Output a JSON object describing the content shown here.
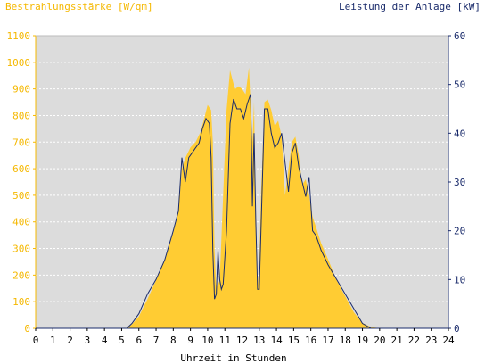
{
  "chart_data": {
    "type": "area",
    "title_left": "Bestrahlungsstärke [W/qm]",
    "title_right": "Leistung der Anlage [kW]",
    "xlabel": "Uhrzeit in Stunden",
    "xlim": [
      0,
      24
    ],
    "x_ticks": [
      "0",
      "1",
      "2",
      "3",
      "4",
      "5",
      "6",
      "7",
      "8",
      "9",
      "10",
      "11",
      "12",
      "13",
      "14",
      "15",
      "16",
      "17",
      "18",
      "19",
      "20",
      "21",
      "22",
      "23",
      "24"
    ],
    "y_left_lim": [
      0,
      1100
    ],
    "y_left_ticks": [
      "0",
      "100",
      "200",
      "300",
      "400",
      "500",
      "600",
      "700",
      "800",
      "900",
      "1000",
      "1100"
    ],
    "y_right_lim": [
      0,
      60
    ],
    "y_right_ticks": [
      "0",
      "10",
      "20",
      "30",
      "40",
      "50",
      "60"
    ],
    "grid": true,
    "colors": {
      "plot_bg": "#dcdcdc",
      "irradiance": "#ffcc33",
      "power": "#1a2b6b",
      "left_axis": "#f5b800",
      "right_axis": "#1a2b6b"
    },
    "series": [
      {
        "axis": "left",
        "x": [
          5.3,
          5.6,
          6.0,
          6.5,
          7.0,
          7.5,
          8.0,
          8.3,
          8.5,
          8.7,
          9.0,
          9.3,
          9.6,
          9.8,
          10.0,
          10.2,
          10.3,
          10.4,
          10.5,
          10.7,
          10.9,
          11.1,
          11.3,
          11.5,
          11.6,
          11.8,
          12.0,
          12.2,
          12.4,
          12.6,
          12.7,
          12.8,
          12.9,
          13.0,
          13.1,
          13.3,
          13.5,
          13.7,
          13.9,
          14.1,
          14.3,
          14.5,
          14.7,
          14.9,
          15.1,
          15.3,
          15.5,
          15.7,
          15.9,
          16.1,
          16.3,
          16.6,
          17.0,
          17.5,
          18.0,
          18.5,
          19.0,
          19.5,
          20.0
        ],
        "y": [
          0,
          15,
          45,
          110,
          180,
          260,
          360,
          440,
          600,
          640,
          680,
          700,
          740,
          790,
          840,
          820,
          700,
          300,
          150,
          180,
          500,
          820,
          970,
          920,
          900,
          910,
          900,
          880,
          980,
          700,
          850,
          380,
          160,
          230,
          500,
          850,
          860,
          820,
          760,
          780,
          720,
          500,
          600,
          700,
          720,
          650,
          540,
          560,
          500,
          420,
          380,
          320,
          260,
          180,
          120,
          60,
          20,
          5,
          0
        ]
      },
      {
        "axis": "right",
        "x": [
          5.3,
          5.6,
          6.0,
          6.5,
          7.0,
          7.5,
          8.0,
          8.3,
          8.5,
          8.7,
          8.9,
          9.1,
          9.3,
          9.5,
          9.7,
          9.9,
          10.1,
          10.2,
          10.3,
          10.4,
          10.5,
          10.6,
          10.7,
          10.8,
          10.9,
          11.1,
          11.3,
          11.5,
          11.7,
          11.9,
          12.1,
          12.3,
          12.5,
          12.6,
          12.7,
          12.8,
          12.9,
          13.0,
          13.1,
          13.3,
          13.5,
          13.7,
          13.9,
          14.1,
          14.3,
          14.5,
          14.7,
          14.9,
          15.1,
          15.3,
          15.5,
          15.7,
          15.9,
          16.1,
          16.3,
          16.6,
          17.0,
          17.5,
          18.0,
          18.5,
          19.0,
          19.5,
          20.0
        ],
        "y": [
          0,
          1,
          3,
          7,
          10,
          14,
          20,
          24,
          35,
          30,
          35,
          36,
          37,
          38,
          41,
          43,
          42,
          35,
          16,
          6,
          7,
          16,
          10,
          8,
          9,
          20,
          42,
          47,
          45,
          45,
          43,
          46,
          48,
          25,
          40,
          22,
          8,
          8,
          20,
          45,
          45,
          40,
          37,
          38,
          40,
          34,
          28,
          36,
          38,
          33,
          30,
          27,
          31,
          20,
          19,
          16,
          13,
          10,
          7,
          4,
          1,
          0,
          0
        ]
      }
    ]
  }
}
